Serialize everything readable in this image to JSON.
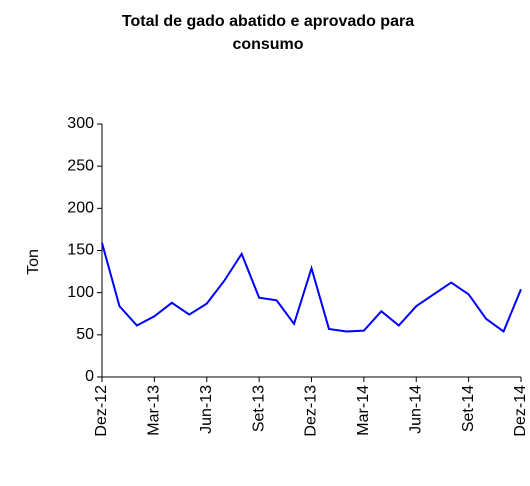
{
  "chart_data": {
    "type": "line",
    "title": [
      "Total de gado abatido e aprovado para",
      "consumo"
    ],
    "y_label": "Ton",
    "categories": [
      "Dez-12",
      null,
      null,
      "Mar-13",
      null,
      null,
      "Jun-13",
      null,
      null,
      "Set-13",
      null,
      null,
      "Dez-13",
      null,
      null,
      "Mar-14",
      null,
      null,
      "Jun-14",
      null,
      null,
      "Set-14",
      null,
      null,
      "Dez-14"
    ],
    "values": [
      159,
      84,
      61,
      72,
      88,
      74,
      87,
      114,
      146,
      94,
      91,
      63,
      129,
      57,
      54,
      55,
      78,
      61,
      84,
      98,
      112,
      98,
      69,
      54,
      104
    ],
    "color": "#0000ff",
    "ylim": [
      0,
      300
    ],
    "yticks": [
      0,
      50,
      100,
      150,
      200,
      250,
      300
    ]
  }
}
